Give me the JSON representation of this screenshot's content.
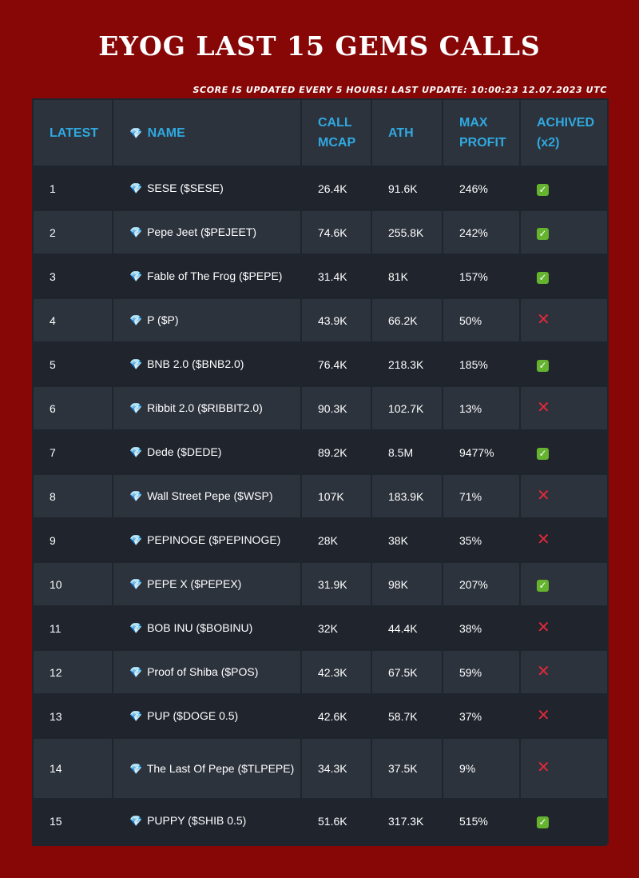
{
  "title": "EYOG LAST 15 GEMS CALLS",
  "subtitle": "Score is updated every 5 hours! Last update: 10:00:23 12.07.2023 UTC",
  "colors": {
    "background": "#870707",
    "table_dark": "#1f242d",
    "table_light": "#2d333d",
    "header_text": "#2fa9e0",
    "check": "#65b32e",
    "cross": "#e0293a"
  },
  "headers": {
    "latest": "LATEST",
    "name": "NAME",
    "call_mcap": "CALL MCAP",
    "ath": "ATH",
    "max_profit": "MAX PROFIT",
    "achived": "ACHIVED (x2)"
  },
  "gem_icon": "💎",
  "rows": [
    {
      "n": "1",
      "name": "SESE ($SESE)",
      "mcap": "26.4K",
      "ath": "91.6K",
      "profit": "246%",
      "achived": true
    },
    {
      "n": "2",
      "name": "Pepe Jeet ($PEJEET)",
      "mcap": "74.6K",
      "ath": "255.8K",
      "profit": "242%",
      "achived": true
    },
    {
      "n": "3",
      "name": "Fable of The Frog ($PEPE)",
      "mcap": "31.4K",
      "ath": "81K",
      "profit": "157%",
      "achived": true
    },
    {
      "n": "4",
      "name": "P ($P)",
      "mcap": "43.9K",
      "ath": "66.2K",
      "profit": "50%",
      "achived": false
    },
    {
      "n": "5",
      "name": "BNB 2.0 ($BNB2.0)",
      "mcap": "76.4K",
      "ath": "218.3K",
      "profit": "185%",
      "achived": true
    },
    {
      "n": "6",
      "name": "Ribbit 2.0 ($RIBBIT2.0)",
      "mcap": "90.3K",
      "ath": "102.7K",
      "profit": "13%",
      "achived": false
    },
    {
      "n": "7",
      "name": "Dede ($DEDE)",
      "mcap": "89.2K",
      "ath": "8.5M",
      "profit": "9477%",
      "achived": true
    },
    {
      "n": "8",
      "name": "Wall Street Pepe ($WSP)",
      "mcap": "107K",
      "ath": "183.9K",
      "profit": "71%",
      "achived": false
    },
    {
      "n": "9",
      "name": "PEPINOGE ($PEPINOGE)",
      "mcap": "28K",
      "ath": "38K",
      "profit": "35%",
      "achived": false
    },
    {
      "n": "10",
      "name": "PEPE X ($PEPEX)",
      "mcap": "31.9K",
      "ath": "98K",
      "profit": "207%",
      "achived": true
    },
    {
      "n": "11",
      "name": "BOB INU ($BOBINU)",
      "mcap": "32K",
      "ath": "44.4K",
      "profit": "38%",
      "achived": false
    },
    {
      "n": "12",
      "name": "Proof of Shiba ($POS)",
      "mcap": "42.3K",
      "ath": "67.5K",
      "profit": "59%",
      "achived": false
    },
    {
      "n": "13",
      "name": "PUP ($DOGE 0.5)",
      "mcap": "42.6K",
      "ath": "58.7K",
      "profit": "37%",
      "achived": false
    },
    {
      "n": "14",
      "name": "The Last Of Pepe ($TLPEPE)",
      "mcap": "34.3K",
      "ath": "37.5K",
      "profit": "9%",
      "achived": false
    },
    {
      "n": "15",
      "name": "PUPPY ($SHIB 0.5)",
      "mcap": "51.6K",
      "ath": "317.3K",
      "profit": "515%",
      "achived": true
    }
  ]
}
